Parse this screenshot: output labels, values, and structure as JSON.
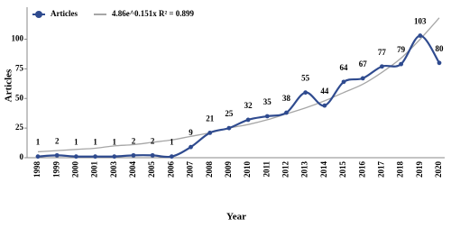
{
  "chart_data": {
    "type": "line",
    "x_label": "Year",
    "y_label": "Articles",
    "categories": [
      "1998",
      "1999",
      "2000",
      "2001",
      "2003",
      "2004",
      "2005",
      "2006",
      "2007",
      "2008",
      "2009",
      "2010",
      "2011",
      "2012",
      "2013",
      "2014",
      "2015",
      "2016",
      "2017",
      "2018",
      "2019",
      "2020"
    ],
    "series": [
      {
        "name": "Articles",
        "color": "#2f4b8f",
        "smooth": true,
        "markers": true,
        "values": [
          1,
          2,
          1,
          1,
          1,
          2,
          2,
          1,
          9,
          21,
          25,
          32,
          35,
          38,
          55,
          44,
          64,
          67,
          77,
          79,
          103,
          80
        ],
        "value_labels": [
          1,
          2,
          1,
          1,
          1,
          2,
          2,
          1,
          9,
          21,
          25,
          32,
          35,
          38,
          55,
          44,
          64,
          67,
          77,
          79,
          103,
          80
        ]
      },
      {
        "name": "4.86e^0.151x R² = 0.899",
        "color": "#a6a6a6",
        "smooth": true,
        "markers": false,
        "values": [
          5,
          6,
          7,
          8,
          10,
          11,
          13,
          15,
          18,
          21,
          25,
          28,
          32,
          37,
          42,
          48,
          55,
          62,
          72,
          84,
          100,
          118
        ]
      }
    ],
    "ylim": [
      0,
      127
    ],
    "yticks": [
      0,
      25,
      50,
      75,
      100
    ],
    "grid": false,
    "legend": "top-left"
  }
}
